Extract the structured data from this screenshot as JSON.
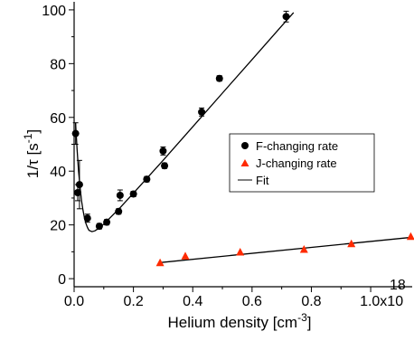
{
  "chart_data": {
    "type": "scatter",
    "xlabel": "Helium density [cm",
    "xlabel_superscript": "-3",
    "xlabel_suffix": "]",
    "ylabel": "1/τ [s",
    "ylabel_superscript": "-1",
    "ylabel_suffix": "]",
    "xlim": [
      0,
      1.14
    ],
    "ylim": [
      -3,
      103
    ],
    "x_ticks": [
      {
        "value": 0.0,
        "label": "0.0"
      },
      {
        "value": 0.2,
        "label": "0.2"
      },
      {
        "value": 0.4,
        "label": "0.4"
      },
      {
        "value": 0.6,
        "label": "0.6"
      },
      {
        "value": 0.8,
        "label": "0.8"
      },
      {
        "value": 1.0,
        "label": "1.0x10"
      }
    ],
    "x_tick_exponent": "18",
    "y_ticks": [
      {
        "value": 0,
        "label": "0"
      },
      {
        "value": 20,
        "label": "20"
      },
      {
        "value": 40,
        "label": "40"
      },
      {
        "value": 60,
        "label": "60"
      },
      {
        "value": 80,
        "label": "80"
      },
      {
        "value": 100,
        "label": "100"
      }
    ],
    "legend_position": "right",
    "series": [
      {
        "name": "F-changing rate",
        "marker": "circle",
        "color": "#000000",
        "points": [
          {
            "x": 0.005,
            "y": 54,
            "err": 4
          },
          {
            "x": 0.012,
            "y": 32,
            "err": 3
          },
          {
            "x": 0.018,
            "y": 35,
            "err": 9
          },
          {
            "x": 0.045,
            "y": 22.5,
            "err": 1.5
          },
          {
            "x": 0.085,
            "y": 19.5,
            "err": 1
          },
          {
            "x": 0.11,
            "y": 21,
            "err": 1
          },
          {
            "x": 0.15,
            "y": 25,
            "err": 1
          },
          {
            "x": 0.155,
            "y": 31,
            "err": 2
          },
          {
            "x": 0.2,
            "y": 31.5,
            "err": 1
          },
          {
            "x": 0.245,
            "y": 37,
            "err": 1
          },
          {
            "x": 0.3,
            "y": 47.5,
            "err": 1.5
          },
          {
            "x": 0.305,
            "y": 42,
            "err": 1
          },
          {
            "x": 0.43,
            "y": 62,
            "err": 1.5
          },
          {
            "x": 0.49,
            "y": 74.5,
            "err": 1
          },
          {
            "x": 0.715,
            "y": 97.5,
            "err": 2
          }
        ]
      },
      {
        "name": "J-changing rate",
        "marker": "triangle",
        "color": "#ff2a00",
        "points": [
          {
            "x": 0.29,
            "y": 5.8
          },
          {
            "x": 0.375,
            "y": 8.3
          },
          {
            "x": 0.56,
            "y": 9.8
          },
          {
            "x": 0.775,
            "y": 10.8
          },
          {
            "x": 0.935,
            "y": 12.9
          },
          {
            "x": 1.135,
            "y": 15.6
          }
        ]
      },
      {
        "name": "Fit",
        "marker": "line",
        "color": "#000000",
        "fit_curves": [
          {
            "points": [
              [
                0.005,
                58
              ],
              [
                0.01,
                48
              ],
              [
                0.015,
                40
              ],
              [
                0.02,
                34
              ],
              [
                0.025,
                29
              ],
              [
                0.03,
                25.5
              ],
              [
                0.035,
                22.5
              ],
              [
                0.04,
                20.5
              ],
              [
                0.045,
                19
              ],
              [
                0.05,
                18
              ],
              [
                0.06,
                17.5
              ],
              [
                0.07,
                17.8
              ],
              [
                0.08,
                18.5
              ],
              [
                0.1,
                20.3
              ],
              [
                0.15,
                25.8
              ],
              [
                0.2,
                31.8
              ],
              [
                0.3,
                44
              ],
              [
                0.4,
                56.5
              ],
              [
                0.5,
                69
              ],
              [
                0.6,
                81.5
              ],
              [
                0.7,
                94
              ],
              [
                0.74,
                99
              ]
            ]
          },
          {
            "points": [
              [
                0.29,
                6.0
              ],
              [
                1.14,
                15.4
              ]
            ]
          }
        ]
      }
    ]
  }
}
